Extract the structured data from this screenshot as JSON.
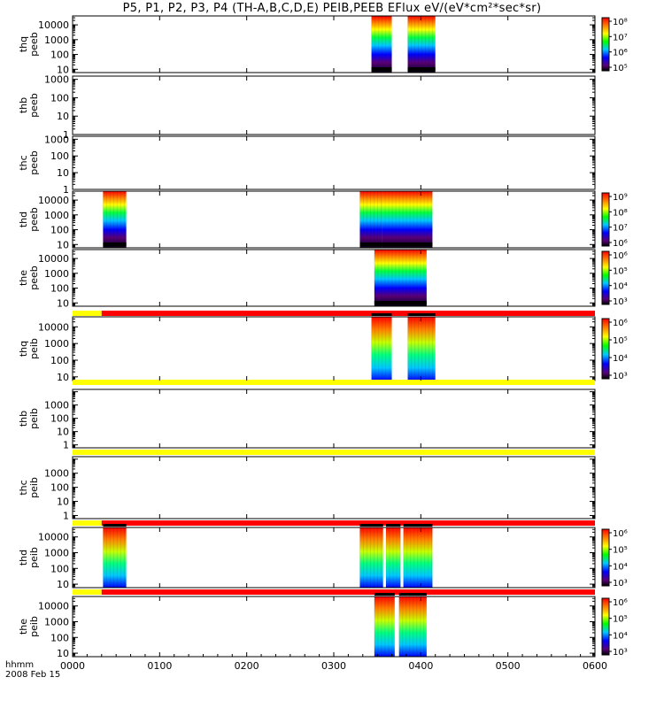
{
  "title": "P5, P1, P2, P3, P4 (TH-A,B,C,D,E) PEIB,PEEB EFlux eV/(eV*cm²*sec*sr)",
  "footer": {
    "time_label": "hhmm",
    "date_label": "2008 Feb 15"
  },
  "chart_data": {
    "type": "heatmap",
    "x_axis": {
      "range": [
        "0000",
        "0600"
      ],
      "tick_labels": [
        "0000",
        "0100",
        "0200",
        "0300",
        "0400",
        "0500",
        "0600"
      ],
      "tick_values_min": [
        0,
        60,
        120,
        180,
        240,
        300,
        360
      ]
    },
    "y_scale": "log",
    "panels": [
      {
        "label": [
          "thq",
          "peeb"
        ],
        "yticks": [
          "10",
          "100",
          "1000",
          "10000"
        ],
        "ytick_values": [
          10,
          100,
          1000,
          10000
        ],
        "ylim": [
          6,
          40000
        ],
        "colorbar": {
          "labels": [
            "10⁵",
            "10⁶",
            "10⁷",
            "10⁸"
          ],
          "values": [
            100000.0,
            1000000.0,
            10000000.0,
            100000000.0
          ]
        },
        "data_intervals_min": [
          [
            206,
            220
          ],
          [
            231,
            250
          ]
        ],
        "kind": "electron",
        "status_bar": null
      },
      {
        "label": [
          "thb",
          "peeb"
        ],
        "yticks": [
          "1",
          "10",
          "100",
          "1000"
        ],
        "ytick_values": [
          1,
          10,
          100,
          1000
        ],
        "ylim": [
          1,
          1500
        ],
        "colorbar": null,
        "data_intervals_min": [],
        "kind": "electron",
        "status_bar": null
      },
      {
        "label": [
          "thc",
          "peeb"
        ],
        "yticks": [
          "1",
          "10",
          "100",
          "1000"
        ],
        "ytick_values": [
          1,
          10,
          100,
          1000
        ],
        "ylim": [
          1,
          1500
        ],
        "colorbar": null,
        "data_intervals_min": [],
        "kind": "electron",
        "status_bar": null
      },
      {
        "label": [
          "thd",
          "peeb"
        ],
        "yticks": [
          "10",
          "100",
          "1000",
          "10000"
        ],
        "ytick_values": [
          10,
          100,
          1000,
          10000
        ],
        "ylim": [
          6,
          40000
        ],
        "colorbar": {
          "labels": [
            "10⁶",
            "10⁷",
            "10⁸",
            "10⁹"
          ],
          "values": [
            1000000.0,
            10000000.0,
            100000000.0,
            1000000000.0
          ]
        },
        "data_intervals_min": [
          [
            21,
            37
          ],
          [
            198,
            213
          ],
          [
            213,
            248
          ]
        ],
        "kind": "electron",
        "status_bar": null
      },
      {
        "label": [
          "the",
          "peeb"
        ],
        "yticks": [
          "10",
          "100",
          "1000",
          "10000"
        ],
        "ytick_values": [
          10,
          100,
          1000,
          10000
        ],
        "ylim": [
          6,
          40000
        ],
        "colorbar": {
          "labels": [
            "10³",
            "10⁴",
            "10⁵",
            "10⁶"
          ],
          "values": [
            1000.0,
            10000.0,
            100000.0,
            1000000.0
          ]
        },
        "data_intervals_min": [
          [
            208,
            244
          ]
        ],
        "kind": "electron",
        "status_bar": null
      },
      {
        "label": [
          "thq",
          "peib"
        ],
        "yticks": [
          "10",
          "100",
          "1000",
          "10000"
        ],
        "ytick_values": [
          10,
          100,
          1000,
          10000
        ],
        "ylim": [
          6,
          40000
        ],
        "colorbar": {
          "labels": [
            "10³",
            "10⁴",
            "10⁵",
            "10⁶"
          ],
          "values": [
            1000.0,
            10000.0,
            100000.0,
            1000000.0
          ]
        },
        "data_intervals_min": [
          [
            206,
            220
          ],
          [
            231,
            250
          ]
        ],
        "kind": "ion",
        "status_bar": {
          "segments": [
            [
              0,
              20,
              "#ffff00"
            ],
            [
              20,
              360,
              "#ff0000"
            ]
          ]
        }
      },
      {
        "label": [
          "thb",
          "peib"
        ],
        "yticks": [
          "1",
          "10",
          "100",
          "1000"
        ],
        "ytick_values": [
          1,
          10,
          100,
          1000
        ],
        "ylim": [
          0.6,
          15000
        ],
        "colorbar": null,
        "data_intervals_min": [],
        "kind": "ion",
        "status_bar": {
          "segments": [
            [
              0,
              360,
              "#ffff00"
            ]
          ]
        }
      },
      {
        "label": [
          "thc",
          "peib"
        ],
        "yticks": [
          "1",
          "10",
          "100",
          "1000"
        ],
        "ytick_values": [
          1,
          10,
          100,
          1000
        ],
        "ylim": [
          0.6,
          15000
        ],
        "colorbar": null,
        "data_intervals_min": [],
        "kind": "ion",
        "status_bar": {
          "segments": [
            [
              0,
              360,
              "#ffff00"
            ]
          ]
        }
      },
      {
        "label": [
          "thd",
          "peib"
        ],
        "yticks": [
          "10",
          "100",
          "1000",
          "10000"
        ],
        "ytick_values": [
          10,
          100,
          1000,
          10000
        ],
        "ylim": [
          6,
          40000
        ],
        "colorbar": {
          "labels": [
            "10³",
            "10⁴",
            "10⁵",
            "10⁶"
          ],
          "values": [
            1000.0,
            10000.0,
            100000.0,
            1000000.0
          ]
        },
        "data_intervals_min": [
          [
            21,
            37
          ],
          [
            198,
            214
          ],
          [
            216,
            226
          ],
          [
            228,
            248
          ]
        ],
        "kind": "ion",
        "status_bar": {
          "segments": [
            [
              0,
              20,
              "#ffff00"
            ],
            [
              20,
              360,
              "#ff0000"
            ]
          ]
        }
      },
      {
        "label": [
          "the",
          "peib"
        ],
        "yticks": [
          "10",
          "100",
          "1000",
          "10000"
        ],
        "ytick_values": [
          10,
          100,
          1000,
          10000
        ],
        "ylim": [
          6,
          40000
        ],
        "colorbar": {
          "labels": [
            "10³",
            "10⁴",
            "10⁵",
            "10⁶"
          ],
          "values": [
            1000.0,
            10000.0,
            100000.0,
            1000000.0
          ]
        },
        "data_intervals_min": [
          [
            208,
            222
          ],
          [
            225,
            244
          ]
        ],
        "kind": "ion",
        "status_bar": {
          "segments": [
            [
              0,
              20,
              "#ffff00"
            ],
            [
              20,
              360,
              "#ff0000"
            ]
          ]
        }
      }
    ]
  }
}
